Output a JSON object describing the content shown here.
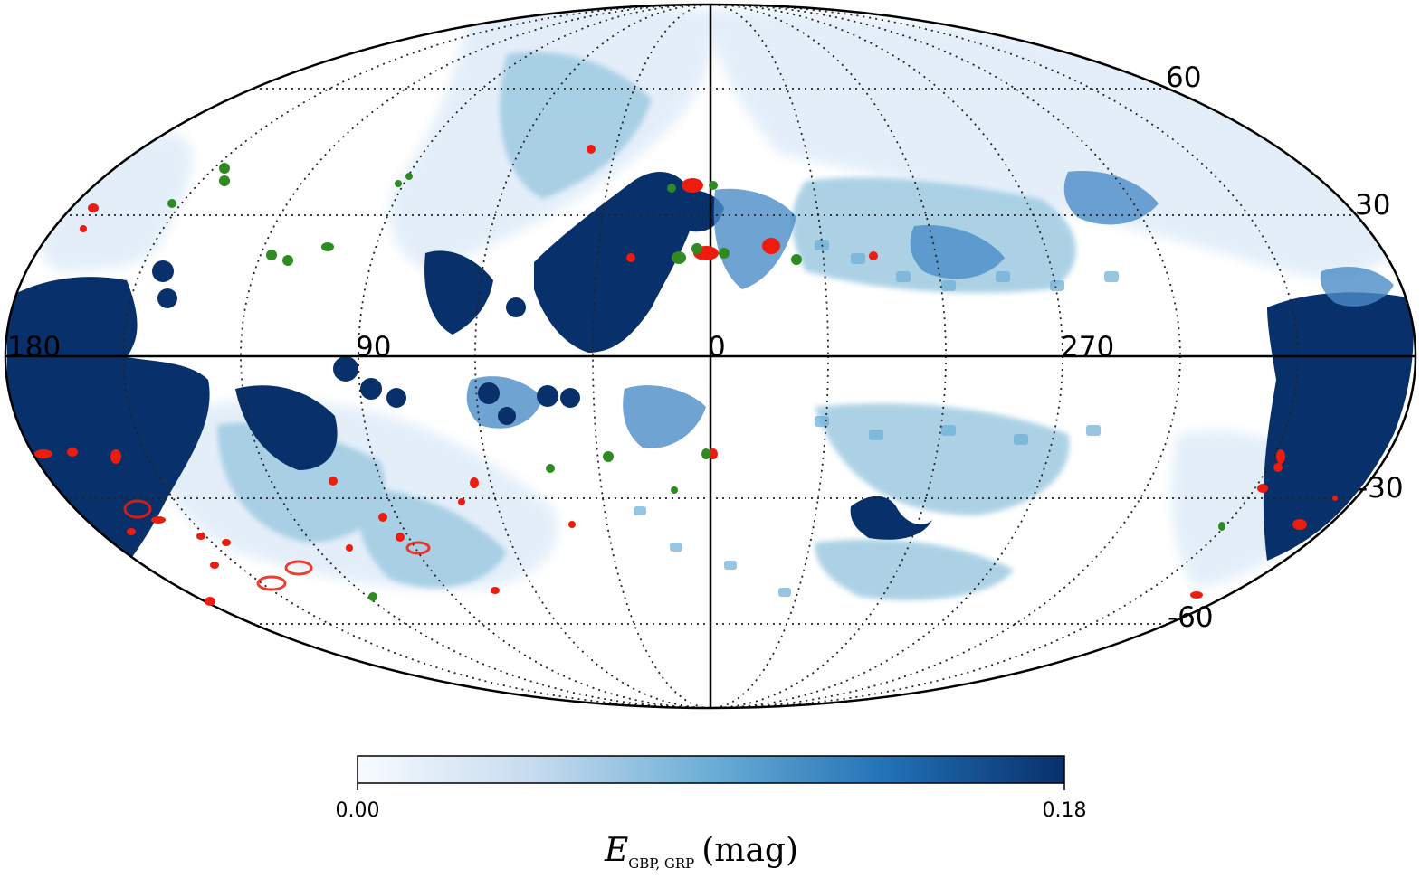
{
  "map": {
    "projection": "Mollweide",
    "coordinate_system": "galactic",
    "graticule_step_deg": {
      "longitude": 30,
      "latitude": 30
    },
    "longitude_labels": [
      "180",
      "90",
      "0",
      "270"
    ],
    "latitude_labels": [
      "60",
      "30",
      "-30",
      "-60"
    ],
    "colormap": [
      "#f7fbff",
      "#c6dbef",
      "#6baed6",
      "#2171b5",
      "#08306b"
    ],
    "marker_colors": {
      "red": "#ee1c0c",
      "green": "#2e8b22"
    }
  },
  "colorbar": {
    "min_label": "0.00",
    "max_label": "0.18",
    "min": 0.0,
    "max": 0.18,
    "label_main": "E",
    "label_sub": "G",
    "label_sub_bp": "BP",
    "label_sep": ", ",
    "label_sub_rp": "RP",
    "label_unit": "(mag)"
  }
}
